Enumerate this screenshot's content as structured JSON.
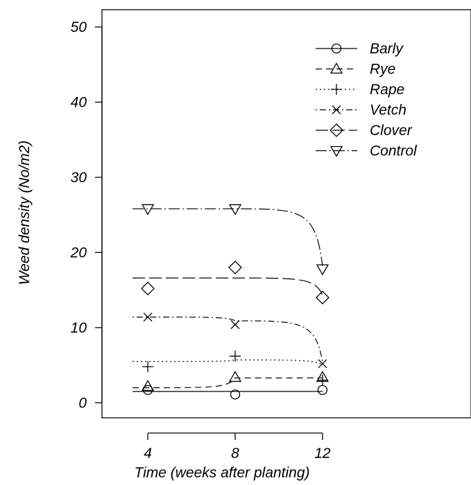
{
  "chart_data": {
    "type": "scatter",
    "title": "",
    "xlabel": "Time (weeks after planting)",
    "ylabel": "Weed density (No/m2)",
    "x_ticks": [
      4,
      8,
      12
    ],
    "y_ticks": [
      0,
      10,
      20,
      30,
      40,
      50
    ],
    "xlim": [
      1.9,
      18.8
    ],
    "ylim": [
      -2,
      52.3
    ],
    "grid": false,
    "legend": "top-right",
    "series": [
      {
        "name": "Barly",
        "marker": "circle",
        "line": "solid",
        "x": [
          4,
          8,
          12
        ],
        "points": [
          1.7,
          1.1,
          1.7
        ],
        "fit": [
          1.5,
          1.5,
          1.5
        ]
      },
      {
        "name": "Rye",
        "marker": "triangle-up",
        "line": "dashed",
        "x": [
          4,
          8,
          12
        ],
        "points": [
          2.2,
          3.4,
          3.4
        ],
        "fit": [
          2.0,
          3.3,
          3.3
        ]
      },
      {
        "name": "Rape",
        "marker": "plus",
        "line": "dotted",
        "x": [
          4,
          8,
          12
        ],
        "points": [
          4.8,
          6.2,
          3.0
        ],
        "fit": [
          5.5,
          5.7,
          5.0
        ]
      },
      {
        "name": "Vetch",
        "marker": "cross",
        "line": "dot-dash",
        "x": [
          4,
          8,
          12
        ],
        "points": [
          11.4,
          10.4,
          5.2
        ],
        "fit": [
          11.4,
          10.9,
          5.4
        ]
      },
      {
        "name": "Clover",
        "marker": "diamond",
        "line": "long-dash",
        "x": [
          4,
          8,
          12
        ],
        "points": [
          15.2,
          18.0,
          14.0
        ],
        "fit": [
          16.6,
          16.6,
          14.3
        ]
      },
      {
        "name": "Control",
        "marker": "triangle-down",
        "line": "long-dot-dash",
        "x": [
          4,
          8,
          12
        ],
        "points": [
          25.8,
          25.8,
          17.8
        ],
        "fit": [
          25.8,
          25.8,
          18.2
        ]
      }
    ]
  }
}
